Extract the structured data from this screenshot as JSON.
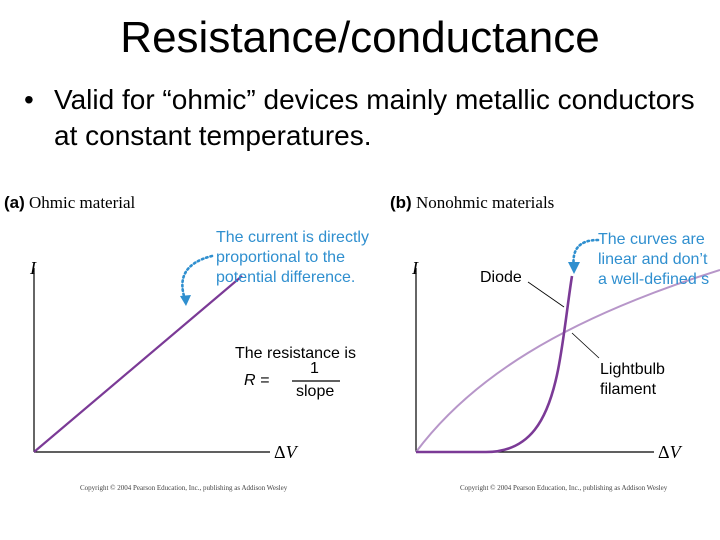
{
  "title": "Resistance/conductance",
  "bullet": {
    "marker": "•",
    "text": "Valid for “ohmic” devices mainly metallic conductors at constant temperatures."
  },
  "figure_a": {
    "tag": "(a)",
    "title": "Ohmic material",
    "note_lines": [
      "The current is directly",
      "proportional to the",
      "potential difference."
    ],
    "resistance_label": "The resistance is",
    "formula_lhs": "R =",
    "formula_num": "1",
    "formula_den": "slope",
    "y_axis": "I",
    "x_axis_delta": "Δ",
    "x_axis_var": "V",
    "copyright": "Copyright © 2004 Pearson Education, Inc., publishing as Addison Wesley"
  },
  "figure_b": {
    "tag": "(b)",
    "title": "Nonohmic materials",
    "note_lines": [
      "The curves are",
      "linear and don’t",
      "a well-defined s"
    ],
    "diode_label": "Diode",
    "bulb_label_lines": [
      "Lightbulb",
      "filament"
    ],
    "y_axis": "I",
    "x_axis_delta": "Δ",
    "x_axis_var": "V",
    "copyright": "Copyright © 2004 Pearson Education, Inc., publishing as Addison Wesley"
  },
  "colors": {
    "curve": "#7b3a96",
    "curve_light": "#b796c9",
    "note": "#2f8fcf"
  }
}
